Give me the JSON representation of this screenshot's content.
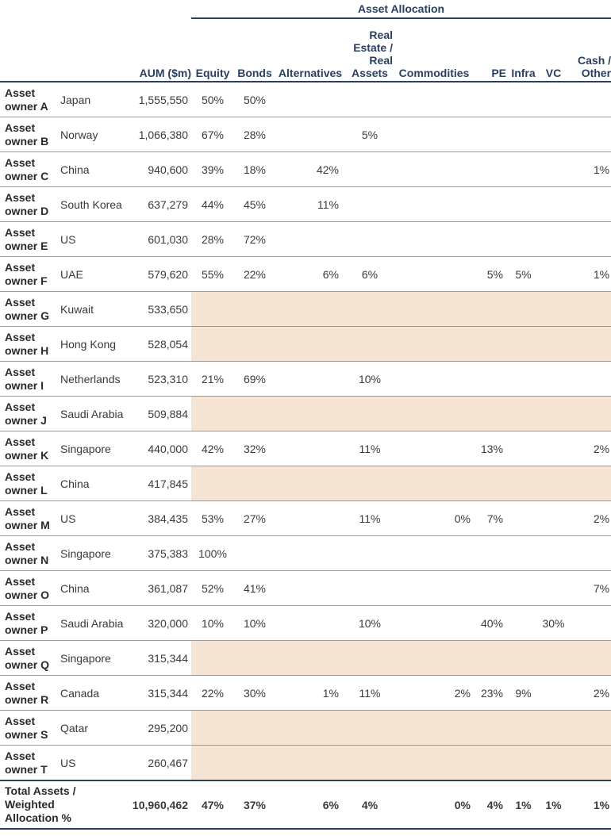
{
  "header": {
    "group_title": "Asset Allocation",
    "aum": "AUM ($m)",
    "equity": "Equity",
    "bonds": "Bonds",
    "alternatives": "Alternatives",
    "real_estate_line1": "Real",
    "real_estate_line2": "Estate /",
    "real_estate_line3": "Real",
    "real_estate_line4": "Assets",
    "commodities": "Commodities",
    "pe": "PE",
    "infra": "Infra",
    "vc": "VC",
    "cash_line1": "Cash /",
    "cash_line2": "Other"
  },
  "rows": [
    {
      "owner_line1": "Asset",
      "owner_line2": "owner A",
      "country": "Japan",
      "aum": "1,555,550",
      "equity": "50%",
      "bonds": "50%",
      "alternatives": "",
      "real_estate": "",
      "commodities": "",
      "pe": "",
      "infra": "",
      "vc": "",
      "cash": "",
      "shaded": false
    },
    {
      "owner_line1": "Asset",
      "owner_line2": "owner B",
      "country": "Norway",
      "aum": "1,066,380",
      "equity": "67%",
      "bonds": "28%",
      "alternatives": "",
      "real_estate": "5%",
      "commodities": "",
      "pe": "",
      "infra": "",
      "vc": "",
      "cash": "",
      "shaded": false
    },
    {
      "owner_line1": "Asset",
      "owner_line2": "owner C",
      "country": "China",
      "aum": "940,600",
      "equity": "39%",
      "bonds": "18%",
      "alternatives": "42%",
      "real_estate": "",
      "commodities": "",
      "pe": "",
      "infra": "",
      "vc": "",
      "cash": "1%",
      "shaded": false
    },
    {
      "owner_line1": "Asset",
      "owner_line2": "owner D",
      "country": "South Korea",
      "aum": "637,279",
      "equity": "44%",
      "bonds": "45%",
      "alternatives": "11%",
      "real_estate": "",
      "commodities": "",
      "pe": "",
      "infra": "",
      "vc": "",
      "cash": "",
      "shaded": false
    },
    {
      "owner_line1": "Asset",
      "owner_line2": "owner E",
      "country": "US",
      "aum": "601,030",
      "equity": "28%",
      "bonds": "72%",
      "alternatives": "",
      "real_estate": "",
      "commodities": "",
      "pe": "",
      "infra": "",
      "vc": "",
      "cash": "",
      "shaded": false
    },
    {
      "owner_line1": "Asset",
      "owner_line2": "owner F",
      "country": "UAE",
      "aum": "579,620",
      "equity": "55%",
      "bonds": "22%",
      "alternatives": "6%",
      "real_estate": "6%",
      "commodities": "",
      "pe": "5%",
      "infra": "5%",
      "vc": "",
      "cash": "1%",
      "shaded": false
    },
    {
      "owner_line1": "Asset",
      "owner_line2": "owner G",
      "country": "Kuwait",
      "aum": "533,650",
      "equity": "",
      "bonds": "",
      "alternatives": "",
      "real_estate": "",
      "commodities": "",
      "pe": "",
      "infra": "",
      "vc": "",
      "cash": "",
      "shaded": true
    },
    {
      "owner_line1": "Asset",
      "owner_line2": "owner H",
      "country": "Hong Kong",
      "aum": "528,054",
      "equity": "",
      "bonds": "",
      "alternatives": "",
      "real_estate": "",
      "commodities": "",
      "pe": "",
      "infra": "",
      "vc": "",
      "cash": "",
      "shaded": true
    },
    {
      "owner_line1": "Asset",
      "owner_line2": "owner I",
      "country": "Netherlands",
      "aum": "523,310",
      "equity": "21%",
      "bonds": "69%",
      "alternatives": "",
      "real_estate": "10%",
      "commodities": "",
      "pe": "",
      "infra": "",
      "vc": "",
      "cash": "",
      "shaded": false
    },
    {
      "owner_line1": "Asset",
      "owner_line2": "owner J",
      "country": "Saudi Arabia",
      "aum": "509,884",
      "equity": "",
      "bonds": "",
      "alternatives": "",
      "real_estate": "",
      "commodities": "",
      "pe": "",
      "infra": "",
      "vc": "",
      "cash": "",
      "shaded": true
    },
    {
      "owner_line1": "Asset",
      "owner_line2": "owner K",
      "country": "Singapore",
      "aum": "440,000",
      "equity": "42%",
      "bonds": "32%",
      "alternatives": "",
      "real_estate": "11%",
      "commodities": "",
      "pe": "13%",
      "infra": "",
      "vc": "",
      "cash": "2%",
      "shaded": false
    },
    {
      "owner_line1": "Asset",
      "owner_line2": "owner L",
      "country": "China",
      "aum": "417,845",
      "equity": "",
      "bonds": "",
      "alternatives": "",
      "real_estate": "",
      "commodities": "",
      "pe": "",
      "infra": "",
      "vc": "",
      "cash": "",
      "shaded": true
    },
    {
      "owner_line1": "Asset",
      "owner_line2": "owner M",
      "country": "US",
      "aum": "384,435",
      "equity": "53%",
      "bonds": "27%",
      "alternatives": "",
      "real_estate": "11%",
      "commodities": "0%",
      "pe": "7%",
      "infra": "",
      "vc": "",
      "cash": "2%",
      "shaded": false
    },
    {
      "owner_line1": "Asset",
      "owner_line2": "owner N",
      "country": "Singapore",
      "aum": "375,383",
      "equity": "100%",
      "bonds": "",
      "alternatives": "",
      "real_estate": "",
      "commodities": "",
      "pe": "",
      "infra": "",
      "vc": "",
      "cash": "",
      "shaded": false
    },
    {
      "owner_line1": "Asset",
      "owner_line2": "owner O",
      "country": "China",
      "aum": "361,087",
      "equity": "52%",
      "bonds": "41%",
      "alternatives": "",
      "real_estate": "",
      "commodities": "",
      "pe": "",
      "infra": "",
      "vc": "",
      "cash": "7%",
      "shaded": false
    },
    {
      "owner_line1": "Asset",
      "owner_line2": "owner P",
      "country": "Saudi Arabia",
      "aum": "320,000",
      "equity": "10%",
      "bonds": "10%",
      "alternatives": "",
      "real_estate": "10%",
      "commodities": "",
      "pe": "40%",
      "infra": "",
      "vc": "30%",
      "cash": "",
      "shaded": false
    },
    {
      "owner_line1": "Asset",
      "owner_line2": "owner Q",
      "country": "Singapore",
      "aum": "315,344",
      "equity": "",
      "bonds": "",
      "alternatives": "",
      "real_estate": "",
      "commodities": "",
      "pe": "",
      "infra": "",
      "vc": "",
      "cash": "",
      "shaded": true
    },
    {
      "owner_line1": "Asset",
      "owner_line2": "owner R",
      "country": "Canada",
      "aum": "315,344",
      "equity": "22%",
      "bonds": "30%",
      "alternatives": "1%",
      "real_estate": "11%",
      "commodities": "2%",
      "pe": "23%",
      "infra": "9%",
      "vc": "",
      "cash": "2%",
      "shaded": false
    },
    {
      "owner_line1": "Asset",
      "owner_line2": "owner S",
      "country": "Qatar",
      "aum": "295,200",
      "equity": "",
      "bonds": "",
      "alternatives": "",
      "real_estate": "",
      "commodities": "",
      "pe": "",
      "infra": "",
      "vc": "",
      "cash": "",
      "shaded": true
    },
    {
      "owner_line1": "Asset",
      "owner_line2": "owner T",
      "country": "US",
      "aum": "260,467",
      "equity": "",
      "bonds": "",
      "alternatives": "",
      "real_estate": "",
      "commodities": "",
      "pe": "",
      "infra": "",
      "vc": "",
      "cash": "",
      "shaded": true
    }
  ],
  "total": {
    "label_line1": "Total Assets /",
    "label_line2": "Weighted",
    "label_line3": "Allocation %",
    "aum": "10,960,462",
    "equity": "47%",
    "bonds": "37%",
    "alternatives": "6%",
    "real_estate": "4%",
    "commodities": "0%",
    "pe": "4%",
    "infra": "1%",
    "vc": "1%",
    "cash": "1%"
  },
  "colors": {
    "header_navy": "#2a4060",
    "shade": "#f5e3d3",
    "rule": "#9a9a9a"
  }
}
